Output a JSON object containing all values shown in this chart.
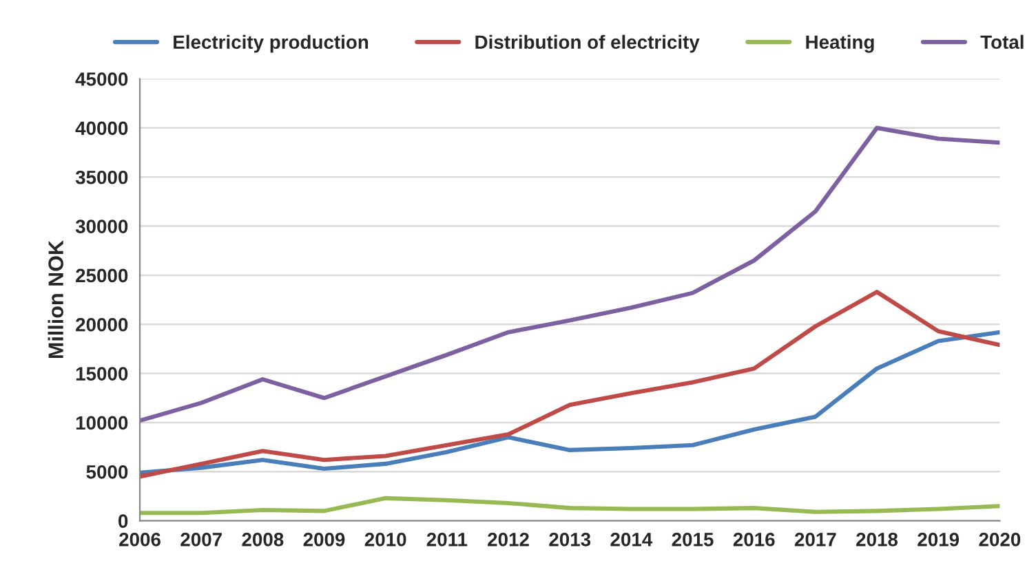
{
  "chart_data": {
    "type": "line",
    "ylabel": "Million NOK",
    "x": [
      2006,
      2007,
      2008,
      2009,
      2010,
      2011,
      2012,
      2013,
      2014,
      2015,
      2016,
      2017,
      2018,
      2019,
      2020
    ],
    "series": [
      {
        "name": "Electricity production",
        "color": "#4a7ebb",
        "values": [
          4900,
          5400,
          6200,
          5300,
          5800,
          7000,
          8500,
          7200,
          7400,
          7700,
          9300,
          10600,
          15500,
          18300,
          19200
        ]
      },
      {
        "name": "Distribution of electricity",
        "color": "#be4b48",
        "values": [
          4500,
          5800,
          7100,
          6200,
          6600,
          7700,
          8800,
          11800,
          13000,
          14100,
          15500,
          19800,
          23300,
          19300,
          17900
        ]
      },
      {
        "name": "Heating",
        "color": "#98b954",
        "values": [
          800,
          800,
          1100,
          1000,
          2300,
          2100,
          1800,
          1300,
          1200,
          1200,
          1300,
          900,
          1000,
          1200,
          1500
        ]
      },
      {
        "name": "Total",
        "color": "#7d60a0",
        "values": [
          10200,
          12000,
          14400,
          12500,
          14700,
          16900,
          19200,
          20400,
          21700,
          23200,
          26500,
          31500,
          40000,
          38900,
          38500
        ]
      }
    ],
    "xlim": [
      2006,
      2020
    ],
    "xticks": [
      2006,
      2007,
      2008,
      2009,
      2010,
      2011,
      2012,
      2013,
      2014,
      2015,
      2016,
      2017,
      2018,
      2019,
      2020
    ],
    "ylim": [
      0,
      45000
    ],
    "yticks": [
      0,
      5000,
      10000,
      15000,
      20000,
      25000,
      30000,
      35000,
      40000,
      45000
    ],
    "grid": "y",
    "legend": "top",
    "marker": "none",
    "line_style": "solid"
  }
}
